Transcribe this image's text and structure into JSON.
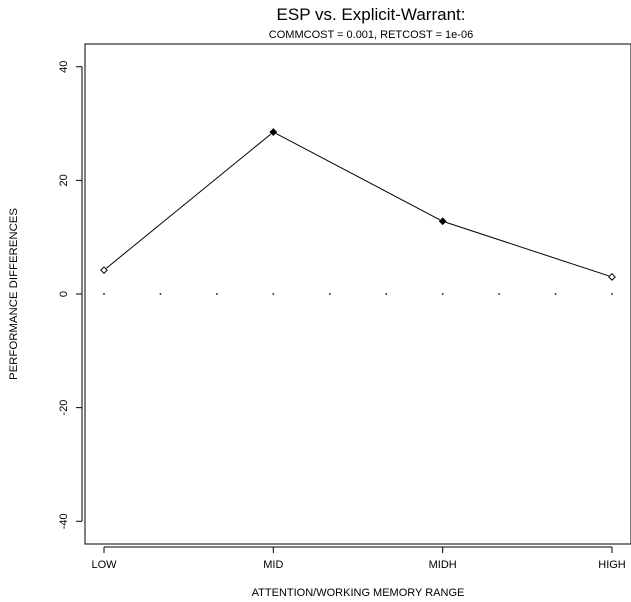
{
  "chart_data": {
    "type": "line",
    "title": "ESP vs. Explicit-Warrant:",
    "subtitle": "COMMCOST = 0.001, RETCOST = 1e-06",
    "xlabel": "ATTENTION/WORKING MEMORY RANGE",
    "ylabel": "PERFORMANCE DIFFERENCES",
    "categories": [
      "LOW",
      "MID",
      "MIDH",
      "HIGH"
    ],
    "ylim": [
      -44,
      44
    ],
    "yticks": [
      -40,
      -20,
      0,
      20,
      40
    ],
    "ytick_labels": [
      "-40",
      "-20",
      "0",
      "20",
      "40"
    ],
    "series": [
      {
        "values": [
          4.2,
          28.5,
          12.8,
          3.0
        ],
        "filled": [
          false,
          true,
          true,
          false
        ]
      }
    ],
    "zero_reference": {
      "y": 0,
      "style": "dotted"
    },
    "grid": false,
    "legend": "none"
  }
}
